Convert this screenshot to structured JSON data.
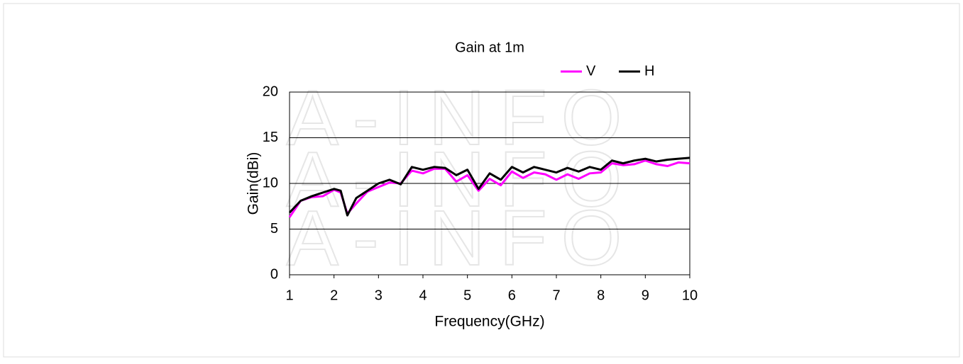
{
  "chart_data": {
    "type": "line",
    "title": "Gain at 1m",
    "watermark": "A-INFO",
    "xlabel": "Frequency(GHz)",
    "ylabel": "Gain(dBi)",
    "x": [
      1.0,
      1.25,
      1.5,
      1.75,
      2.0,
      2.15,
      2.3,
      2.5,
      2.75,
      3.0,
      3.25,
      3.5,
      3.75,
      4.0,
      4.25,
      4.5,
      4.75,
      5.0,
      5.25,
      5.5,
      5.75,
      6.0,
      6.25,
      6.5,
      6.75,
      7.0,
      7.25,
      7.5,
      7.75,
      8.0,
      8.25,
      8.5,
      8.75,
      9.0,
      9.25,
      9.5,
      9.75,
      10.0
    ],
    "series": [
      {
        "name": "V",
        "color": "#ff00ff",
        "values": [
          6.3,
          8.1,
          8.5,
          8.6,
          9.3,
          9.0,
          6.7,
          7.8,
          9.1,
          9.6,
          10.1,
          10.0,
          11.4,
          11.1,
          11.6,
          11.6,
          10.2,
          10.9,
          9.2,
          10.5,
          9.8,
          11.3,
          10.6,
          11.2,
          11.0,
          10.4,
          11.0,
          10.5,
          11.1,
          11.2,
          12.2,
          12.0,
          12.1,
          12.5,
          12.1,
          11.9,
          12.3,
          12.2
        ]
      },
      {
        "name": "H",
        "color": "#000000",
        "values": [
          6.8,
          8.1,
          8.6,
          9.0,
          9.4,
          9.2,
          6.5,
          8.4,
          9.2,
          10.0,
          10.4,
          9.9,
          11.8,
          11.5,
          11.8,
          11.7,
          10.9,
          11.5,
          9.4,
          11.1,
          10.4,
          11.8,
          11.2,
          11.8,
          11.5,
          11.2,
          11.7,
          11.3,
          11.8,
          11.5,
          12.5,
          12.2,
          12.5,
          12.7,
          12.4,
          12.6,
          12.7,
          12.8
        ]
      }
    ],
    "xlim": [
      1,
      10
    ],
    "xticks": [
      1,
      2,
      3,
      4,
      5,
      6,
      7,
      8,
      9,
      10
    ],
    "ylim": [
      0,
      20
    ],
    "yticks": [
      0,
      5,
      10,
      15,
      20
    ],
    "grid": true,
    "legend": "top-right"
  }
}
